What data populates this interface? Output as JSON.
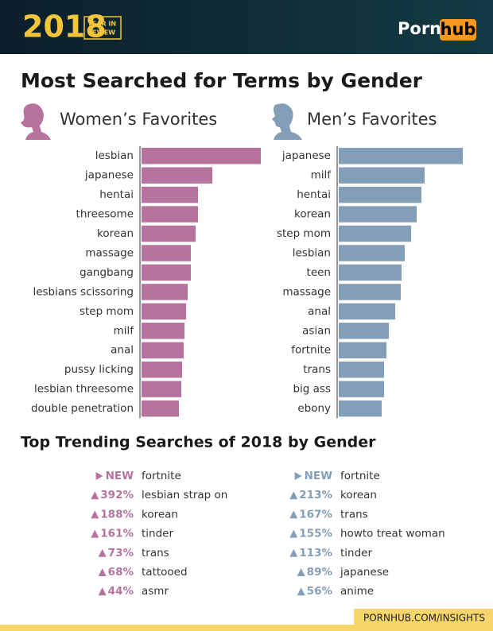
{
  "header": {
    "year": "2018",
    "badge": [
      "YEAR IN",
      "REVIEW"
    ],
    "brand": "Porn",
    "brand_box": "hub"
  },
  "title": "Most Searched for Terms by Gender",
  "chart_data": [
    {
      "type": "bar",
      "title": "Women’s Favorites",
      "color": "#b5739e",
      "xlim": [
        0,
        155
      ],
      "categories": [
        "lesbian",
        "japanese",
        "hentai",
        "threesome",
        "korean",
        "massage",
        "gangbang",
        "lesbians scissoring",
        "step mom",
        "milf",
        "anal",
        "pussy licking",
        "lesbian threesome",
        "double penetration"
      ],
      "values": [
        150,
        89,
        71,
        71,
        68,
        62,
        62,
        58,
        56,
        54,
        53,
        51,
        50,
        47
      ]
    },
    {
      "type": "bar",
      "title": "Men’s Favorites",
      "color": "#839fb8",
      "xlim": [
        0,
        155
      ],
      "categories": [
        "japanese",
        "milf",
        "hentai",
        "korean",
        "step mom",
        "lesbian",
        "teen",
        "massage",
        "anal",
        "asian",
        "fortnite",
        "trans",
        "big ass",
        "ebony"
      ],
      "values": [
        156,
        108,
        104,
        98,
        91,
        83,
        79,
        78,
        71,
        63,
        60,
        57,
        57,
        54
      ]
    }
  ],
  "trending": {
    "title": "Top Trending Searches of 2018 by Gender",
    "women": {
      "color": "#b5739e",
      "rows": [
        [
          "NEW",
          "fortnite"
        ],
        [
          "392%",
          "lesbian strap on"
        ],
        [
          "188%",
          "korean"
        ],
        [
          "161%",
          "tinder"
        ],
        [
          "73%",
          "trans"
        ],
        [
          "68%",
          "tattooed"
        ],
        [
          "44%",
          "asmr"
        ]
      ]
    },
    "men": {
      "color": "#839fb8",
      "rows": [
        [
          "NEW",
          "fortnite"
        ],
        [
          "213%",
          "korean"
        ],
        [
          "167%",
          "trans"
        ],
        [
          "155%",
          "howto treat woman"
        ],
        [
          "113%",
          "tinder"
        ],
        [
          "89%",
          "japanese"
        ],
        [
          "56%",
          "anime"
        ]
      ]
    }
  },
  "footer": "PORNHUB.COM/INSIGHTS"
}
